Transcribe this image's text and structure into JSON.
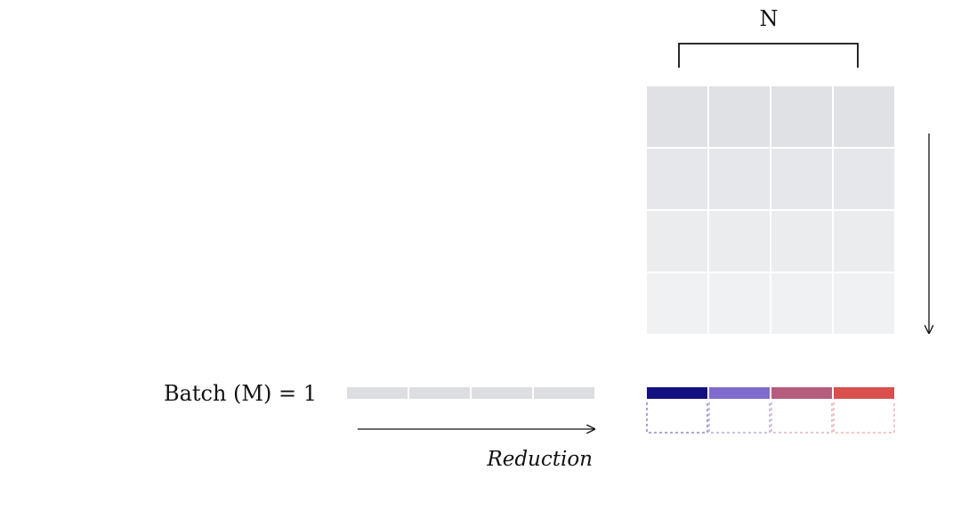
{
  "labels": {
    "n": "N",
    "batch": "Batch (M) = 1",
    "reduction": "Reduction"
  },
  "matrix": {
    "rows": 4,
    "cols": 4,
    "row_colors": [
      "#e0e1e4",
      "#e6e7ea",
      "#ebecee",
      "#f0f1f3"
    ]
  },
  "vector": {
    "cells": 4,
    "color": "#dddee1"
  },
  "output": {
    "cells": 4,
    "colors": [
      "#13107f",
      "#7f6bcc",
      "#b55d7c",
      "#d94f4d"
    ],
    "dashed_colors": [
      "#7a72c4",
      "#a99ae0",
      "#d9a3b6",
      "#f0a3a2"
    ]
  }
}
